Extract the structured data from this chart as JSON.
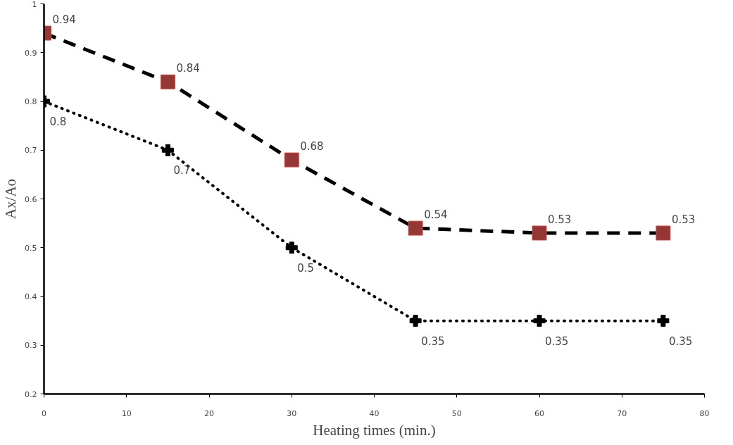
{
  "chart_data": {
    "type": "line",
    "xlabel": "Heating times (min.)",
    "ylabel": "Ax/Ao",
    "x": [
      0,
      15,
      30,
      45,
      60,
      75
    ],
    "series": [
      {
        "color": "#000000",
        "colors": [
          "#953735",
          "#953735",
          "#953735",
          "#953735",
          "#953735",
          "#953735"
        ],
        "marker": "square",
        "line_style": "dashed",
        "values": [
          0.94,
          0.84,
          0.68,
          0.54,
          0.53,
          0.53
        ]
      },
      {
        "color": "#000000",
        "marker": "cross",
        "line_style": "dotted",
        "values": [
          0.8,
          0.7,
          0.5,
          0.35,
          0.35,
          0.35
        ]
      }
    ],
    "xlim": [
      0,
      80
    ],
    "xticks": [
      0,
      10,
      20,
      30,
      40,
      50,
      60,
      70,
      80
    ],
    "ylim": [
      0.2,
      1
    ],
    "yticks": [
      0.2,
      0.3,
      0.4,
      0.5,
      0.6,
      0.7,
      0.8,
      0.9,
      1
    ],
    "grid": false,
    "data_labels": true
  }
}
